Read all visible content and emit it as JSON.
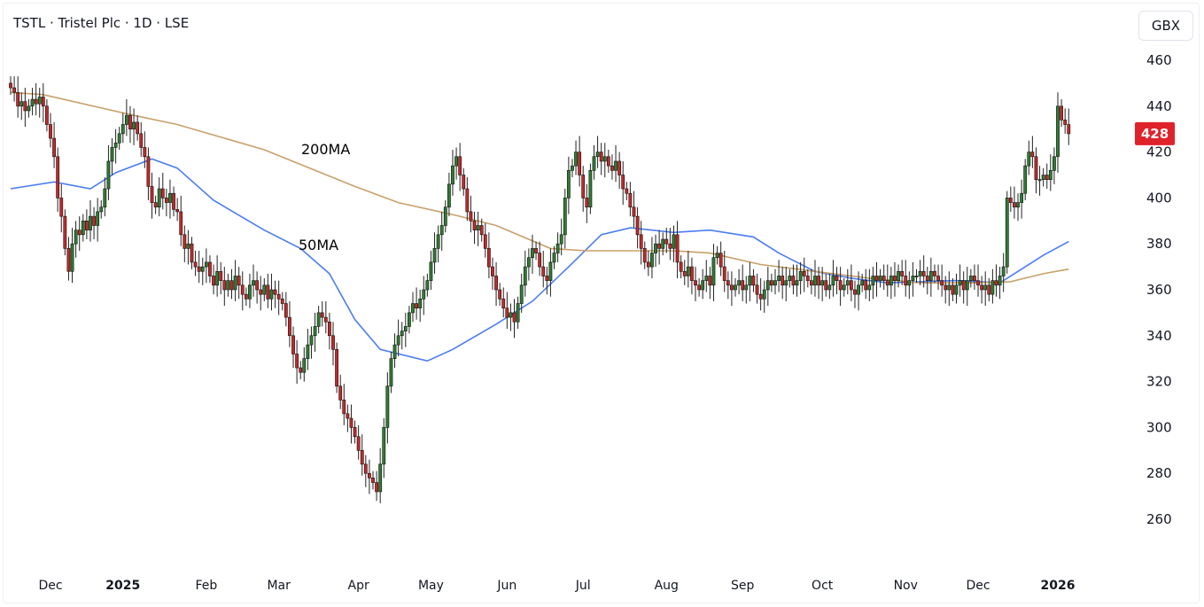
{
  "header": {
    "title": "TSTL · Tristel Plc · 1D · LSE",
    "currency_button": "GBX"
  },
  "last_price": {
    "label": "428",
    "value": 428,
    "color": "#e0222b"
  },
  "colors": {
    "up": "#2e7d32",
    "down": "#c62828",
    "wick": "#000000",
    "ma50": "#4a7df2",
    "ma200": "#c9a06a"
  },
  "chart_data": {
    "type": "candlestick",
    "title": "TSTL · Tristel Plc · 1D · LSE",
    "y_ticks": [
      460,
      440,
      420,
      400,
      380,
      360,
      340,
      320,
      300,
      280,
      260
    ],
    "ylim": [
      250,
      463
    ],
    "x_ticks": [
      {
        "label": "Dec",
        "bar": 11,
        "bold": false
      },
      {
        "label": "2025",
        "bar": 31,
        "bold": true
      },
      {
        "label": "Feb",
        "bar": 54,
        "bold": false
      },
      {
        "label": "Mar",
        "bar": 74,
        "bold": false
      },
      {
        "label": "Apr",
        "bar": 96,
        "bold": false
      },
      {
        "label": "May",
        "bar": 116,
        "bold": false
      },
      {
        "label": "Jun",
        "bar": 137,
        "bold": false
      },
      {
        "label": "Jul",
        "bar": 158,
        "bold": false
      },
      {
        "label": "Aug",
        "bar": 181,
        "bold": false
      },
      {
        "label": "Sep",
        "bar": 202,
        "bold": false
      },
      {
        "label": "Oct",
        "bar": 224,
        "bold": false
      },
      {
        "label": "Nov",
        "bar": 247,
        "bold": false
      },
      {
        "label": "Dec",
        "bar": 267,
        "bold": false
      },
      {
        "label": "2026",
        "bar": 289,
        "bold": true
      }
    ],
    "closes": [
      448,
      446,
      440,
      442,
      438,
      440,
      443,
      441,
      444,
      440,
      432,
      426,
      418,
      400,
      392,
      378,
      368,
      380,
      386,
      384,
      390,
      386,
      392,
      388,
      394,
      396,
      404,
      416,
      422,
      424,
      428,
      432,
      436,
      430,
      433,
      428,
      422,
      418,
      405,
      398,
      396,
      404,
      400,
      398,
      402,
      395,
      394,
      384,
      378,
      380,
      372,
      370,
      368,
      370,
      372,
      366,
      362,
      368,
      364,
      360,
      364,
      360,
      366,
      362,
      358,
      356,
      362,
      364,
      360,
      358,
      362,
      356,
      360,
      358,
      356,
      354,
      348,
      340,
      332,
      326,
      324,
      330,
      336,
      340,
      344,
      350,
      348,
      346,
      340,
      334,
      318,
      312,
      306,
      304,
      300,
      296,
      290,
      284,
      280,
      278,
      276,
      272,
      284,
      300,
      318,
      330,
      336,
      340,
      342,
      344,
      350,
      354,
      352,
      356,
      360,
      364,
      372,
      378,
      384,
      388,
      396,
      406,
      414,
      418,
      410,
      404,
      394,
      390,
      386,
      388,
      384,
      378,
      370,
      366,
      360,
      356,
      352,
      348,
      350,
      346,
      354,
      362,
      370,
      374,
      378,
      376,
      370,
      366,
      364,
      372,
      376,
      380,
      384,
      400,
      412,
      414,
      420,
      410,
      400,
      396,
      412,
      418,
      420,
      416,
      418,
      414,
      412,
      416,
      410,
      404,
      402,
      396,
      392,
      384,
      378,
      372,
      370,
      376,
      380,
      378,
      382,
      380,
      378,
      384,
      372,
      368,
      366,
      370,
      364,
      362,
      360,
      364,
      366,
      362,
      374,
      376,
      370,
      364,
      362,
      360,
      362,
      364,
      360,
      362,
      366,
      362,
      358,
      356,
      360,
      364,
      362,
      364,
      366,
      362,
      364,
      366,
      362,
      364,
      368,
      366,
      364,
      362,
      366,
      362,
      364,
      360,
      362,
      366,
      364,
      360,
      362,
      364,
      360,
      358,
      362,
      364,
      360,
      362,
      366,
      364,
      366,
      364,
      362,
      366,
      364,
      368,
      366,
      362,
      364,
      366,
      366,
      368,
      366,
      364,
      368,
      366,
      364,
      362,
      360,
      362,
      358,
      362,
      364,
      360,
      364,
      366,
      364,
      362,
      360,
      362,
      358,
      364,
      362,
      366,
      370,
      400,
      398,
      396,
      398,
      402,
      414,
      420,
      418,
      408,
      408,
      410,
      408,
      412,
      418,
      440,
      434,
      432,
      428
    ],
    "series": [
      {
        "name": "50MA",
        "points": [
          [
            0,
            404
          ],
          [
            12,
            407
          ],
          [
            22,
            404
          ],
          [
            29,
            411
          ],
          [
            39,
            417
          ],
          [
            46,
            413
          ],
          [
            56,
            399
          ],
          [
            70,
            386
          ],
          [
            80,
            378
          ],
          [
            88,
            367
          ],
          [
            95,
            347
          ],
          [
            102,
            334
          ],
          [
            115,
            329
          ],
          [
            122,
            334
          ],
          [
            134,
            345
          ],
          [
            144,
            355
          ],
          [
            154,
            370
          ],
          [
            163,
            384
          ],
          [
            171,
            387
          ],
          [
            183,
            385
          ],
          [
            193,
            386
          ],
          [
            205,
            383
          ],
          [
            212,
            376
          ],
          [
            222,
            368
          ],
          [
            232,
            365
          ],
          [
            242,
            363
          ],
          [
            261,
            364
          ],
          [
            273,
            363
          ],
          [
            278,
            368
          ],
          [
            285,
            375
          ],
          [
            292,
            381
          ]
        ]
      },
      {
        "name": "200MA",
        "points": [
          [
            0,
            446
          ],
          [
            9,
            445
          ],
          [
            34,
            436
          ],
          [
            46,
            432
          ],
          [
            70,
            421
          ],
          [
            95,
            405
          ],
          [
            107,
            398
          ],
          [
            124,
            392
          ],
          [
            134,
            388
          ],
          [
            149,
            378
          ],
          [
            159,
            377
          ],
          [
            168,
            377
          ],
          [
            183,
            377
          ],
          [
            193,
            376
          ],
          [
            207,
            371
          ],
          [
            222,
            368
          ],
          [
            237,
            365
          ],
          [
            251,
            363
          ],
          [
            266,
            363
          ],
          [
            276,
            363.5
          ],
          [
            285,
            367
          ],
          [
            292,
            369
          ]
        ]
      }
    ]
  }
}
